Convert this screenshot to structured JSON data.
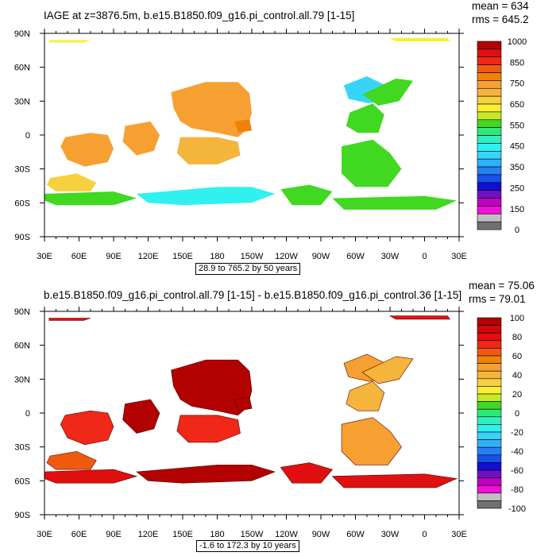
{
  "chart_data": [
    {
      "type": "heatmap",
      "title": "IAGE at z=3876.5m, b.e15.B1850.f09_g16.pi_control.all.79 [1-15]",
      "stats": {
        "mean": "mean = 634",
        "rms": "rms = 645.2"
      },
      "x_ticks": [
        "30E",
        "60E",
        "90E",
        "120E",
        "150E",
        "180",
        "150W",
        "120W",
        "90W",
        "60W",
        "30W",
        "0",
        "30E"
      ],
      "y_ticks": [
        "90N",
        "60N",
        "30N",
        "0",
        "30S",
        "60S",
        "90S"
      ],
      "contour_label": "28.9 to 765.2 by 50 years",
      "colorbar": {
        "labels": [
          "1000",
          "850",
          "750",
          "650",
          "550",
          "450",
          "350",
          "250",
          "150",
          "0"
        ],
        "colors": [
          "#b30000",
          "#e01010",
          "#f02818",
          "#f05a10",
          "#f0820a",
          "#f7a032",
          "#f5b43c",
          "#f7d040",
          "#f8f030",
          "#c8e82a",
          "#40d820",
          "#30e878",
          "#30f0c0",
          "#30f0f0",
          "#38d4f8",
          "#30b0f8",
          "#2880f0",
          "#1850e8",
          "#1010d0",
          "#7010c0",
          "#c000c0",
          "#f010d8",
          "#c0c0c0",
          "#707070"
        ]
      }
    },
    {
      "type": "heatmap",
      "title": "b.e15.B1850.f09_g16.pi_control.all.79 [1-15] - b.e15.B1850.f09_g16.pi_control.36 [1-15]",
      "stats": {
        "mean": "mean = 75.06",
        "rms": "rms = 79.01"
      },
      "x_ticks": [
        "30E",
        "60E",
        "90E",
        "120E",
        "150E",
        "180",
        "150W",
        "120W",
        "90W",
        "60W",
        "30W",
        "0",
        "30E"
      ],
      "y_ticks": [
        "90N",
        "60N",
        "30N",
        "0",
        "30S",
        "60S",
        "90S"
      ],
      "contour_label": "-1.6 to 172.3 by 10 years",
      "colorbar": {
        "labels": [
          "100",
          "80",
          "60",
          "40",
          "20",
          "0",
          "-20",
          "-40",
          "-60",
          "-80",
          "-100"
        ],
        "colors": [
          "#b30000",
          "#d00808",
          "#e01010",
          "#f02818",
          "#f05a10",
          "#f0820a",
          "#f7a032",
          "#f5b43c",
          "#f7d040",
          "#f8f030",
          "#c8e82a",
          "#40d820",
          "#30e878",
          "#30f0c0",
          "#30f0f0",
          "#38d4f8",
          "#30b0f8",
          "#2880f0",
          "#1850e8",
          "#1010d0",
          "#7010c0",
          "#c000c0",
          "#f010d8",
          "#c0c0c0",
          "#707070"
        ]
      }
    }
  ]
}
